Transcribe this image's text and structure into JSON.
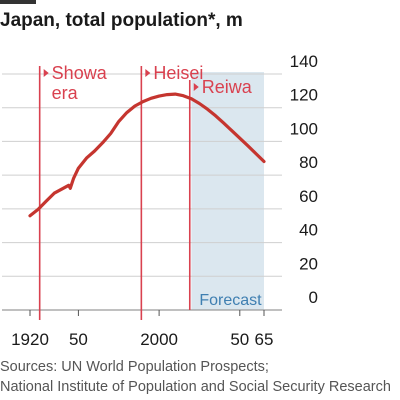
{
  "title": "Japan, total population*, m",
  "sources": [
    "Sources: UN World Population Prospects;",
    "National Institute of Population and Social Security Research"
  ],
  "colors": {
    "line": "#c5352f",
    "era_marker": "#d9414f",
    "forecast_shade": "#dbe7ef",
    "forecast_text": "#3f7fb1",
    "grid": "#cfcfcf",
    "axis_text": "#1a1a1a"
  },
  "chart_data": {
    "type": "line",
    "title": "Japan, total population*, m",
    "ylim": [
      0,
      140
    ],
    "xlim": [
      1910,
      2070
    ],
    "y_ticks": [
      0,
      20,
      40,
      60,
      80,
      100,
      120,
      140
    ],
    "x_ticks": [
      {
        "value": 1920,
        "label": "1920"
      },
      {
        "value": 1950,
        "label": "50"
      },
      {
        "value": 2000,
        "label": "2000"
      },
      {
        "value": 2050,
        "label": "50"
      },
      {
        "value": 2065,
        "label": "65"
      }
    ],
    "grid": true,
    "series": [
      {
        "values": [
          {
            "x": 1920,
            "y": 55.9
          },
          {
            "x": 1925,
            "y": 59.7
          },
          {
            "x": 1930,
            "y": 64.5
          },
          {
            "x": 1935,
            "y": 69.3
          },
          {
            "x": 1940,
            "y": 71.9
          },
          {
            "x": 1944,
            "y": 74.0
          },
          {
            "x": 1945,
            "y": 72.2
          },
          {
            "x": 1947,
            "y": 78.1
          },
          {
            "x": 1950,
            "y": 84.1
          },
          {
            "x": 1955,
            "y": 90.1
          },
          {
            "x": 1960,
            "y": 94.3
          },
          {
            "x": 1965,
            "y": 99.2
          },
          {
            "x": 1970,
            "y": 104.7
          },
          {
            "x": 1975,
            "y": 111.9
          },
          {
            "x": 1980,
            "y": 117.1
          },
          {
            "x": 1985,
            "y": 121.0
          },
          {
            "x": 1990,
            "y": 123.6
          },
          {
            "x": 1995,
            "y": 125.6
          },
          {
            "x": 2000,
            "y": 126.9
          },
          {
            "x": 2005,
            "y": 127.8
          },
          {
            "x": 2010,
            "y": 128.1
          },
          {
            "x": 2015,
            "y": 127.1
          },
          {
            "x": 2020,
            "y": 125.3
          },
          {
            "x": 2025,
            "y": 122.5
          },
          {
            "x": 2030,
            "y": 119.1
          },
          {
            "x": 2035,
            "y": 115.2
          },
          {
            "x": 2040,
            "y": 110.9
          },
          {
            "x": 2045,
            "y": 106.4
          },
          {
            "x": 2050,
            "y": 101.9
          },
          {
            "x": 2055,
            "y": 97.4
          },
          {
            "x": 2060,
            "y": 92.8
          },
          {
            "x": 2065,
            "y": 88.1
          }
        ]
      }
    ],
    "era_markers": [
      {
        "x": 1926,
        "label_lines": [
          "Showa",
          "era"
        ]
      },
      {
        "x": 1989,
        "label_lines": [
          "Heisei"
        ]
      },
      {
        "x": 2019,
        "label_lines": [
          "Reiwa"
        ]
      }
    ],
    "forecast": {
      "from": 2020,
      "to": 2065,
      "label": "Forecast"
    }
  }
}
